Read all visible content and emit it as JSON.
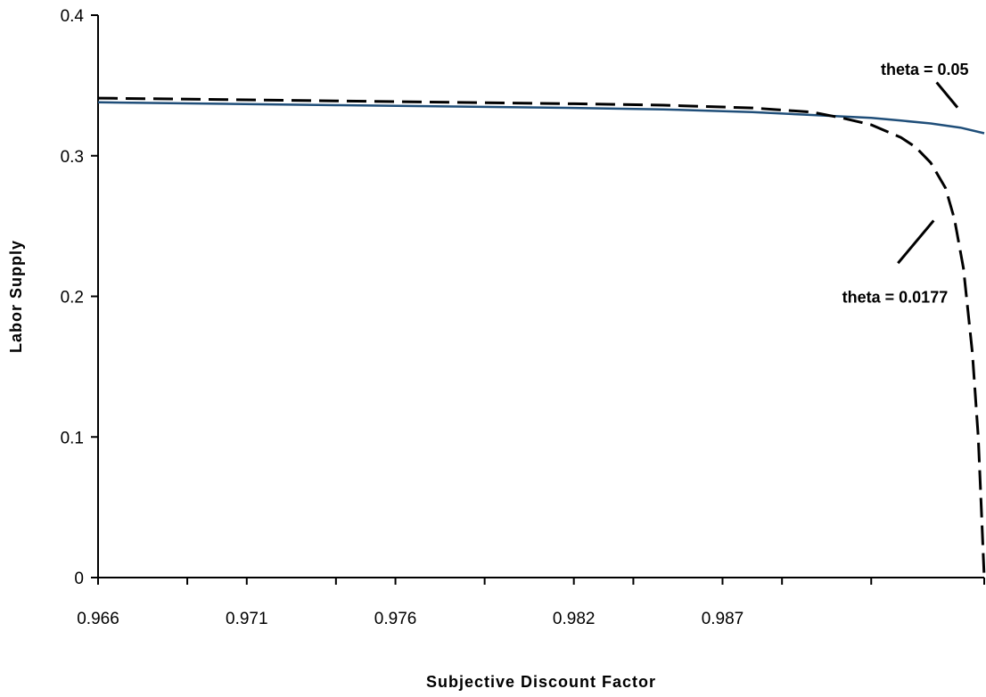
{
  "chart_data": {
    "type": "line",
    "title": "",
    "xlabel": "Subjective Discount Factor",
    "ylabel": "Labor Supply",
    "xlim": [
      0.966,
      0.9958
    ],
    "ylim": [
      0,
      0.4
    ],
    "x_ticks": [
      0.966,
      0.969,
      0.971,
      0.974,
      0.976,
      0.979,
      0.982,
      0.984,
      0.987,
      0.989,
      0.992,
      0.9958
    ],
    "x_tick_labels": [
      "0.966",
      "0.971",
      "0.976",
      "0.982",
      "0.987"
    ],
    "x_tick_label_values": [
      0.966,
      0.971,
      0.976,
      0.982,
      0.987
    ],
    "y_ticks": [
      0,
      0.1,
      0.2,
      0.3,
      0.4
    ],
    "y_tick_labels": [
      "0",
      "0.1",
      "0.2",
      "0.3",
      "0.4"
    ],
    "grid": false,
    "legend": "none",
    "series": [
      {
        "name": "theta = 0.05",
        "style": "solid",
        "color": "#1f4e79",
        "x": [
          0.966,
          0.97,
          0.974,
          0.978,
          0.982,
          0.985,
          0.988,
          0.99,
          0.992,
          0.993,
          0.994,
          0.995,
          0.9958
        ],
        "y": [
          0.338,
          0.337,
          0.336,
          0.335,
          0.334,
          0.333,
          0.331,
          0.329,
          0.327,
          0.325,
          0.323,
          0.32,
          0.316
        ]
      },
      {
        "name": "theta = 0.0177",
        "style": "dashed",
        "color": "#000000",
        "x": [
          0.966,
          0.97,
          0.974,
          0.978,
          0.982,
          0.985,
          0.988,
          0.99,
          0.991,
          0.992,
          0.993,
          0.9935,
          0.994,
          0.9945,
          0.9948,
          0.9951,
          0.9954,
          0.9956,
          0.9957,
          0.9958
        ],
        "y": [
          0.341,
          0.34,
          0.339,
          0.338,
          0.337,
          0.336,
          0.334,
          0.331,
          0.327,
          0.322,
          0.313,
          0.306,
          0.295,
          0.277,
          0.255,
          0.22,
          0.16,
          0.1,
          0.05,
          0.0
        ]
      }
    ],
    "annotations": [
      {
        "text": "theta = 0.05",
        "x": 0.9938,
        "y": 0.3575,
        "pointer_from": [
          0.9942,
          0.3522
        ],
        "pointer_to": [
          0.9949,
          0.3343
        ]
      },
      {
        "text": "theta = 0.0177",
        "x": 0.9928,
        "y": 0.1955,
        "pointer_from": [
          0.9929,
          0.2236
        ],
        "pointer_to": [
          0.9941,
          0.2539
        ]
      }
    ]
  }
}
